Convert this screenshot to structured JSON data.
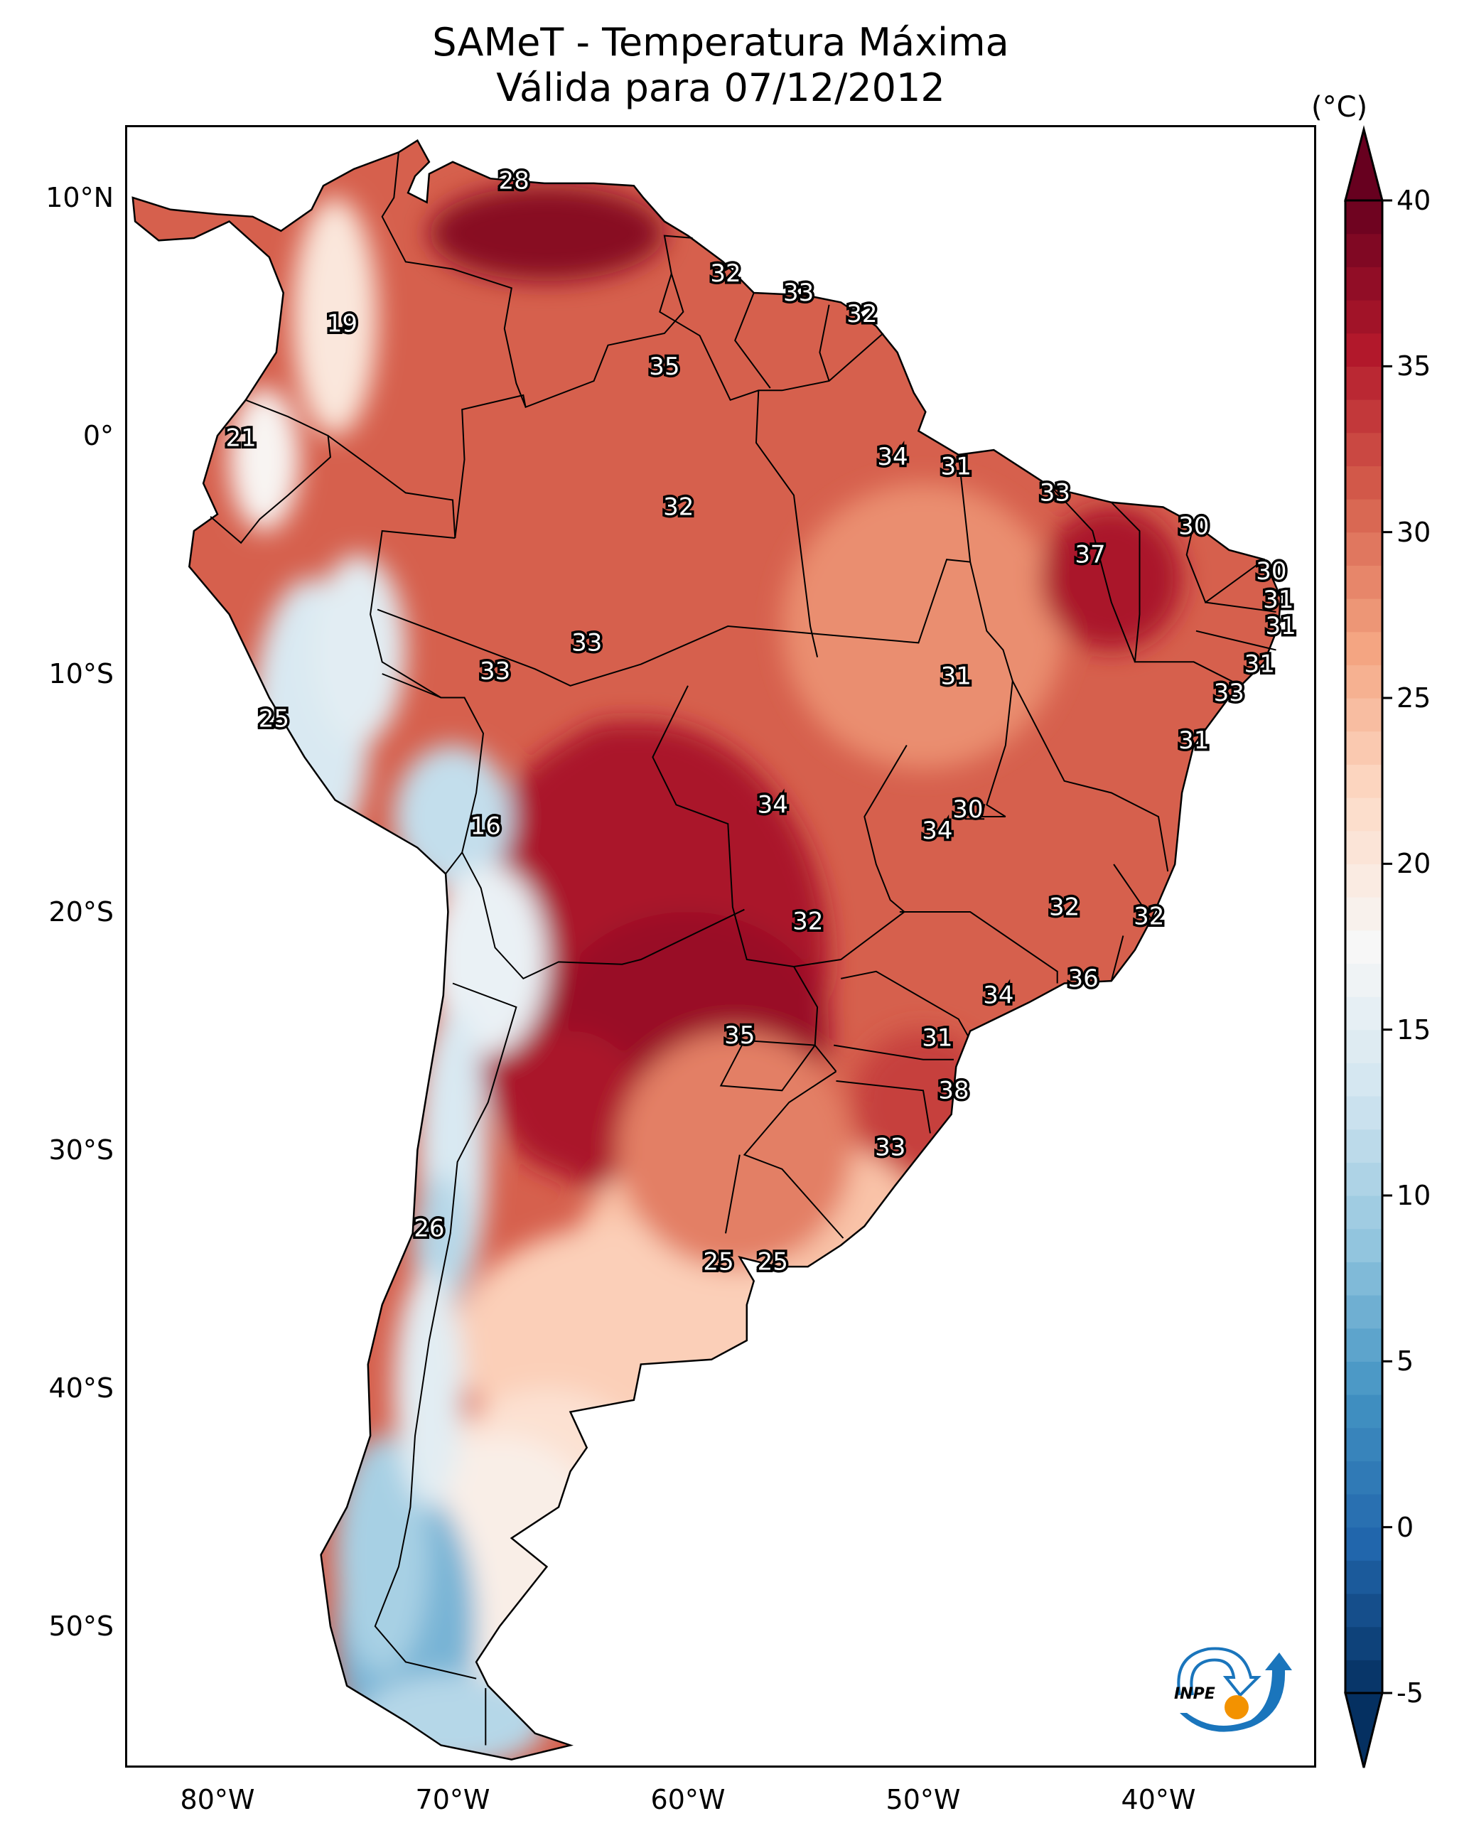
{
  "title": {
    "line1": "SAMeT - Temperatura Máxima",
    "line2": "Válida para 07/12/2012"
  },
  "logo": {
    "text": "INPE",
    "icon": "inpe-logo-icon"
  },
  "chart_data": {
    "type": "heatmap",
    "subtype": "filled-contour map with station labels",
    "title": "SAMeT - Temperatura Máxima",
    "subtitle": "Válida para 07/12/2012",
    "variable": "Maximum temperature",
    "units": "(°C)",
    "extent": {
      "lon": [
        -84,
        -33
      ],
      "lat": [
        -56,
        13
      ]
    },
    "x_ticks": [
      {
        "value": -80,
        "label": "80°W"
      },
      {
        "value": -70,
        "label": "70°W"
      },
      {
        "value": -60,
        "label": "60°W"
      },
      {
        "value": -50,
        "label": "50°W"
      },
      {
        "value": -40,
        "label": "40°W"
      }
    ],
    "y_ticks": [
      {
        "value": 10,
        "label": "10°N"
      },
      {
        "value": 0,
        "label": "0°"
      },
      {
        "value": -10,
        "label": "10°S"
      },
      {
        "value": -20,
        "label": "20°S"
      },
      {
        "value": -30,
        "label": "30°S"
      },
      {
        "value": -40,
        "label": "40°S"
      },
      {
        "value": -50,
        "label": "50°S"
      }
    ],
    "colorbar": {
      "colormap": "RdBu_r",
      "range": [
        -5,
        40
      ],
      "extend": "both",
      "ticks": [
        40,
        35,
        30,
        25,
        20,
        15,
        10,
        5,
        0,
        -5
      ],
      "tick_labels": [
        "40",
        "35",
        "30",
        "25",
        "20",
        "15",
        "10",
        "5",
        "0",
        "-5"
      ],
      "colors": [
        "#053061",
        "#2166ac",
        "#4393c3",
        "#92c5de",
        "#d1e5f0",
        "#f7f7f7",
        "#fddbc7",
        "#f4a582",
        "#d6604d",
        "#b2182b",
        "#67001f"
      ]
    },
    "stations": [
      {
        "value": 28,
        "lon": -67.4,
        "lat": 10.7
      },
      {
        "value": 19,
        "lon": -74.7,
        "lat": 4.7
      },
      {
        "value": 32,
        "lon": -58.4,
        "lat": 6.8
      },
      {
        "value": 33,
        "lon": -55.3,
        "lat": 6.0
      },
      {
        "value": 32,
        "lon": -52.6,
        "lat": 5.1
      },
      {
        "value": 35,
        "lon": -61.0,
        "lat": 2.9
      },
      {
        "value": 21,
        "lon": -79.0,
        "lat": -0.1
      },
      {
        "value": 34,
        "lon": -51.3,
        "lat": -0.9
      },
      {
        "value": 31,
        "lon": -48.6,
        "lat": -1.3
      },
      {
        "value": 32,
        "lon": -60.4,
        "lat": -3.0
      },
      {
        "value": 33,
        "lon": -44.4,
        "lat": -2.4
      },
      {
        "value": 30,
        "lon": -38.5,
        "lat": -3.8
      },
      {
        "value": 37,
        "lon": -42.9,
        "lat": -5.0
      },
      {
        "value": 30,
        "lon": -35.2,
        "lat": -5.7
      },
      {
        "value": 31,
        "lon": -34.9,
        "lat": -6.9
      },
      {
        "value": 31,
        "lon": -34.8,
        "lat": -8.0
      },
      {
        "value": 33,
        "lon": -64.3,
        "lat": -8.7
      },
      {
        "value": 33,
        "lon": -68.2,
        "lat": -9.9
      },
      {
        "value": 31,
        "lon": -48.6,
        "lat": -10.1
      },
      {
        "value": 31,
        "lon": -35.7,
        "lat": -9.6
      },
      {
        "value": 33,
        "lon": -37.0,
        "lat": -10.8
      },
      {
        "value": 25,
        "lon": -77.6,
        "lat": -11.9
      },
      {
        "value": 31,
        "lon": -38.5,
        "lat": -12.8
      },
      {
        "value": 34,
        "lon": -56.4,
        "lat": -15.5
      },
      {
        "value": 30,
        "lon": -48.1,
        "lat": -15.7
      },
      {
        "value": 16,
        "lon": -68.6,
        "lat": -16.4
      },
      {
        "value": 34,
        "lon": -49.4,
        "lat": -16.6
      },
      {
        "value": 32,
        "lon": -44.0,
        "lat": -19.8
      },
      {
        "value": 32,
        "lon": -40.4,
        "lat": -20.2
      },
      {
        "value": 32,
        "lon": -54.9,
        "lat": -20.4
      },
      {
        "value": 36,
        "lon": -43.2,
        "lat": -22.8
      },
      {
        "value": 34,
        "lon": -46.8,
        "lat": -23.5
      },
      {
        "value": 35,
        "lon": -57.8,
        "lat": -25.2
      },
      {
        "value": 31,
        "lon": -49.4,
        "lat": -25.3
      },
      {
        "value": 38,
        "lon": -48.7,
        "lat": -27.5
      },
      {
        "value": 33,
        "lon": -51.4,
        "lat": -29.9
      },
      {
        "value": 26,
        "lon": -71.0,
        "lat": -33.3
      },
      {
        "value": 25,
        "lon": -58.7,
        "lat": -34.7
      },
      {
        "value": 25,
        "lon": -56.4,
        "lat": -34.7
      }
    ]
  }
}
